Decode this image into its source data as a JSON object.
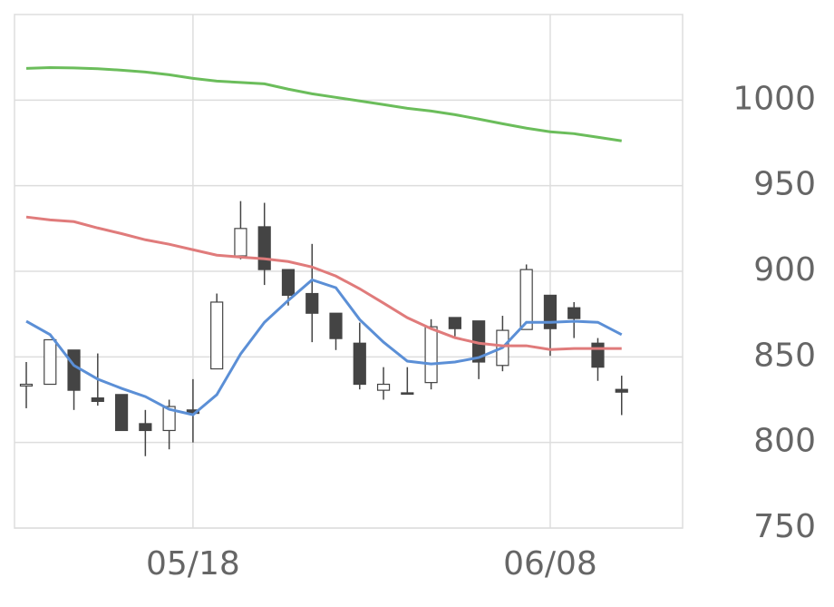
{
  "chart_data": {
    "type": "candlestick",
    "categories": [
      null,
      null,
      null,
      null,
      null,
      null,
      null,
      "05/18",
      null,
      null,
      null,
      null,
      null,
      null,
      null,
      null,
      null,
      null,
      null,
      null,
      null,
      null,
      "06/08",
      null,
      null,
      null
    ],
    "open": [
      833,
      834,
      854,
      826,
      828,
      811,
      807,
      819,
      843,
      909,
      926,
      901,
      887,
      875.5,
      858,
      830.5,
      829,
      835,
      873,
      871,
      845,
      866,
      886,
      878.7,
      858,
      831
    ],
    "high": [
      847,
      860,
      854,
      852,
      828,
      819,
      825,
      837,
      887,
      941,
      940,
      901,
      916,
      875.5,
      870,
      844,
      844,
      872,
      873,
      871,
      874,
      904,
      886,
      882,
      861,
      839
    ],
    "low": [
      820,
      834,
      819,
      821.5,
      807,
      792,
      796,
      800,
      843,
      907,
      892,
      880,
      858.6,
      854,
      831,
      825,
      829,
      831,
      862,
      837,
      841.6,
      866,
      850.6,
      861,
      836,
      816
    ],
    "close": [
      834,
      860,
      830.5,
      824,
      807,
      807,
      821,
      817,
      882,
      925,
      901,
      886,
      875.5,
      860.7,
      834,
      834,
      829,
      867.6,
      866.5,
      847,
      865.5,
      901,
      866.5,
      872.4,
      844,
      829.4
    ],
    "up_color": "#ffffff",
    "down_color": "#444444",
    "edge_color": "#444444",
    "lines": [
      {
        "color": "#5b8fd6",
        "values": [
          870.8,
          863,
          845,
          837,
          831.6,
          826.8,
          819.4,
          816.2,
          827.9,
          851.7,
          870.2,
          883,
          895,
          890.4,
          871.8,
          858.6,
          847.5,
          845.9,
          847,
          849.6,
          855.4,
          870.2,
          870.2,
          870.8,
          870.2,
          863
        ]
      },
      {
        "color": "#e07b7b",
        "values": [
          931.7,
          930,
          929,
          925.3,
          922,
          918.4,
          915.8,
          912.6,
          909.4,
          908.3,
          907.3,
          905.7,
          902.5,
          897.2,
          889.8,
          881.4,
          872.9,
          866.5,
          861.2,
          858,
          856.5,
          856.5,
          854.3,
          854.9,
          854.9,
          854.9
        ]
      },
      {
        "color": "#6bbd5b",
        "values": [
          1018.5,
          1019,
          1018.8,
          1018.3,
          1017.5,
          1016.4,
          1014.8,
          1012.7,
          1011.1,
          1010.3,
          1009.5,
          1006.4,
          1003.7,
          1001.6,
          999.5,
          997.4,
          995.2,
          993.6,
          991.5,
          988.9,
          986.2,
          983.6,
          981.5,
          980.4,
          978.3,
          976.2
        ]
      }
    ],
    "ylim": [
      750,
      1050
    ],
    "yticks": [
      750,
      800,
      850,
      900,
      950,
      1000
    ],
    "grid": true
  }
}
